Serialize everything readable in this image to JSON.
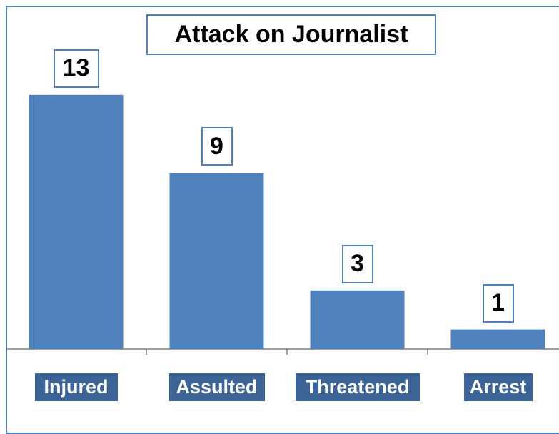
{
  "chart_data": {
    "type": "bar",
    "title": "Attack on Journalist",
    "categories": [
      "Injured",
      "Assulted",
      "Threatened",
      "Arrest"
    ],
    "values": [
      13,
      9,
      3,
      1
    ],
    "data_labels": [
      "13",
      "9",
      "3",
      "1"
    ],
    "xlabel": "",
    "ylabel": "",
    "grid": false,
    "legend": "none",
    "colors": {
      "bar": "#4F81BD",
      "label_border": "#4F81BD",
      "category_label_bg": "#3C6396",
      "axis": "#808080"
    }
  }
}
